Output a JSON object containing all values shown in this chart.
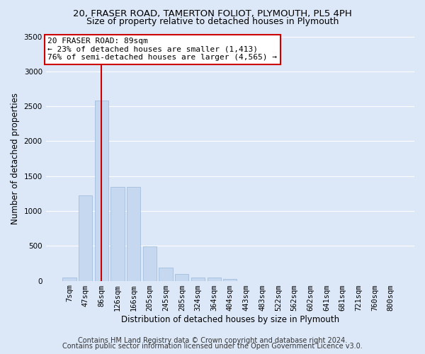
{
  "title_line1": "20, FRASER ROAD, TAMERTON FOLIOT, PLYMOUTH, PL5 4PH",
  "title_line2": "Size of property relative to detached houses in Plymouth",
  "xlabel": "Distribution of detached houses by size in Plymouth",
  "ylabel": "Number of detached properties",
  "bar_values": [
    50,
    1220,
    2580,
    1340,
    1340,
    490,
    185,
    95,
    45,
    45,
    30,
    0,
    0,
    0,
    0,
    0,
    0,
    0,
    0,
    0,
    0
  ],
  "bar_labels": [
    "7sqm",
    "47sqm",
    "86sqm",
    "126sqm",
    "166sqm",
    "205sqm",
    "245sqm",
    "285sqm",
    "324sqm",
    "364sqm",
    "404sqm",
    "443sqm",
    "483sqm",
    "522sqm",
    "562sqm",
    "602sqm",
    "641sqm",
    "681sqm",
    "721sqm",
    "760sqm",
    "800sqm"
  ],
  "bar_color": "#c5d8f0",
  "bar_edgecolor": "#9ab8d8",
  "highlight_bar_index": 2,
  "highlight_line_color": "#cc0000",
  "annotation_text": "20 FRASER ROAD: 89sqm\n← 23% of detached houses are smaller (1,413)\n76% of semi-detached houses are larger (4,565) →",
  "annotation_box_color": "#ffffff",
  "annotation_box_edgecolor": "#cc0000",
  "ylim": [
    0,
    3500
  ],
  "yticks": [
    0,
    500,
    1000,
    1500,
    2000,
    2500,
    3000,
    3500
  ],
  "background_color": "#dce8f8",
  "grid_color": "#ffffff",
  "footer_line1": "Contains HM Land Registry data © Crown copyright and database right 2024.",
  "footer_line2": "Contains public sector information licensed under the Open Government Licence v3.0.",
  "title_fontsize": 9.5,
  "subtitle_fontsize": 9,
  "axis_label_fontsize": 8.5,
  "tick_fontsize": 7.5,
  "annotation_fontsize": 8,
  "footer_fontsize": 7
}
